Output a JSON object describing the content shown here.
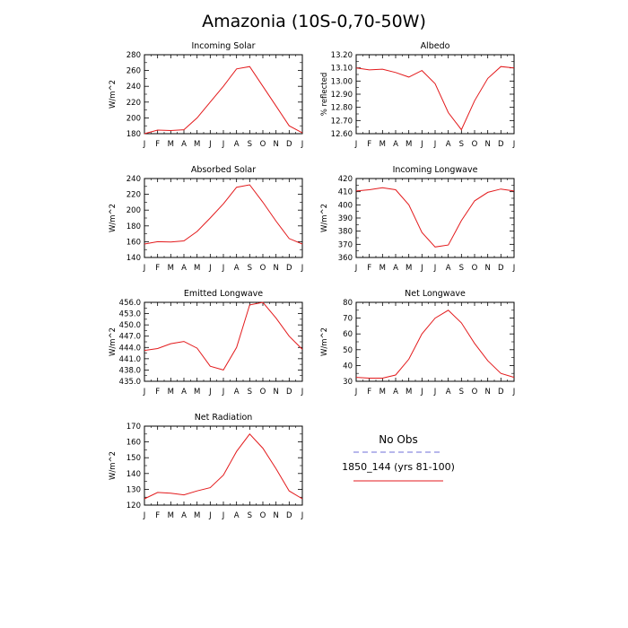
{
  "figure_title": "Amazonia (10S-0,70-50W)",
  "legend": {
    "items": [
      {
        "label": "No Obs",
        "color": "#6f6fd8",
        "dash": "dashed"
      },
      {
        "label": "1850_144 (yrs 81-100)",
        "color": "#e31a1c",
        "dash": "solid"
      }
    ]
  },
  "chart_data": [
    {
      "type": "line",
      "title": "Incoming Solar",
      "ylabel": "W/m^2",
      "categories": [
        "J",
        "F",
        "M",
        "A",
        "M",
        "J",
        "J",
        "A",
        "S",
        "O",
        "N",
        "D",
        "J"
      ],
      "yticks": [
        180,
        200,
        220,
        240,
        260,
        280
      ],
      "ytick_labels": [
        "180",
        "200",
        "220",
        "240",
        "260",
        "280"
      ],
      "ylim": [
        180,
        280
      ],
      "grid": false,
      "series": [
        {
          "color": "#e31a1c",
          "values": [
            180,
            184.5,
            184,
            185,
            200,
            220,
            240,
            262,
            265,
            240,
            215,
            190,
            181
          ]
        }
      ]
    },
    {
      "type": "line",
      "title": "Albedo",
      "ylabel": "% reflected",
      "categories": [
        "J",
        "F",
        "M",
        "A",
        "M",
        "J",
        "J",
        "A",
        "S",
        "O",
        "N",
        "D",
        "J"
      ],
      "yticks": [
        12.6,
        12.7,
        12.8,
        12.9,
        13.0,
        13.1,
        13.2
      ],
      "ytick_labels": [
        "12.60",
        "12.70",
        "12.80",
        "12.90",
        "13.00",
        "13.10",
        "13.20"
      ],
      "ylim": [
        12.6,
        13.2
      ],
      "grid": false,
      "series": [
        {
          "color": "#e31a1c",
          "values": [
            13.1,
            13.085,
            13.09,
            13.065,
            13.03,
            13.08,
            12.98,
            12.76,
            12.63,
            12.85,
            13.02,
            13.11,
            13.1
          ]
        }
      ]
    },
    {
      "type": "line",
      "title": "Absorbed Solar",
      "ylabel": "W/m^2",
      "categories": [
        "J",
        "F",
        "M",
        "A",
        "M",
        "J",
        "J",
        "A",
        "S",
        "O",
        "N",
        "D",
        "J"
      ],
      "yticks": [
        140,
        160,
        180,
        200,
        220,
        240
      ],
      "ytick_labels": [
        "140",
        "160",
        "180",
        "200",
        "220",
        "240"
      ],
      "ylim": [
        140,
        240
      ],
      "grid": false,
      "series": [
        {
          "color": "#e31a1c",
          "values": [
            157,
            160,
            159.5,
            161,
            173,
            190,
            208,
            229,
            232,
            210,
            186,
            164,
            157
          ]
        }
      ]
    },
    {
      "type": "line",
      "title": "Incoming Longwave",
      "ylabel": "W/m^2",
      "categories": [
        "J",
        "F",
        "M",
        "A",
        "M",
        "J",
        "J",
        "A",
        "S",
        "O",
        "N",
        "D",
        "J"
      ],
      "yticks": [
        360,
        370,
        380,
        390,
        400,
        410,
        420
      ],
      "ytick_labels": [
        "360",
        "370",
        "380",
        "390",
        "400",
        "410",
        "420"
      ],
      "ylim": [
        360,
        420
      ],
      "grid": false,
      "series": [
        {
          "color": "#e31a1c",
          "values": [
            410.5,
            411.5,
            413,
            411.5,
            400,
            379,
            368,
            369.5,
            388,
            403,
            409.5,
            412,
            410.5
          ]
        }
      ]
    },
    {
      "type": "line",
      "title": "Emitted Longwave",
      "ylabel": "W/m^2",
      "categories": [
        "J",
        "F",
        "M",
        "A",
        "M",
        "J",
        "J",
        "A",
        "S",
        "O",
        "N",
        "D",
        "J"
      ],
      "yticks": [
        435,
        438,
        441,
        444,
        447,
        450,
        453,
        456
      ],
      "ytick_labels": [
        "435.0",
        "438.0",
        "441.0",
        "444.0",
        "447.0",
        "450.0",
        "453.0",
        "456.0"
      ],
      "ylim": [
        435,
        456
      ],
      "grid": false,
      "series": [
        {
          "color": "#e31a1c",
          "values": [
            443.2,
            443.7,
            445,
            445.6,
            443.8,
            439,
            438,
            444,
            455.3,
            456,
            451.8,
            447,
            443.5
          ]
        }
      ]
    },
    {
      "type": "line",
      "title": "Net Longwave",
      "ylabel": "W/m^2",
      "categories": [
        "J",
        "F",
        "M",
        "A",
        "M",
        "J",
        "J",
        "A",
        "S",
        "O",
        "N",
        "D",
        "J"
      ],
      "yticks": [
        30,
        40,
        50,
        60,
        70,
        80
      ],
      "ytick_labels": [
        "30",
        "40",
        "50",
        "60",
        "70",
        "80"
      ],
      "ylim": [
        30,
        80
      ],
      "grid": false,
      "series": [
        {
          "color": "#e31a1c",
          "values": [
            32.5,
            32,
            32,
            34,
            44,
            60,
            70,
            75,
            67,
            54,
            43,
            35,
            32.5
          ]
        }
      ]
    },
    {
      "type": "line",
      "title": "Net Radiation",
      "ylabel": "W/m^2",
      "categories": [
        "J",
        "F",
        "M",
        "A",
        "M",
        "J",
        "J",
        "A",
        "S",
        "O",
        "N",
        "D",
        "J"
      ],
      "yticks": [
        120,
        130,
        140,
        150,
        160,
        170
      ],
      "ytick_labels": [
        "120",
        "130",
        "140",
        "150",
        "160",
        "170"
      ],
      "ylim": [
        120,
        170
      ],
      "grid": false,
      "series": [
        {
          "color": "#e31a1c",
          "values": [
            124,
            128,
            127.5,
            126.5,
            129,
            131,
            139,
            154,
            165,
            156,
            143,
            129,
            124
          ]
        }
      ]
    }
  ]
}
